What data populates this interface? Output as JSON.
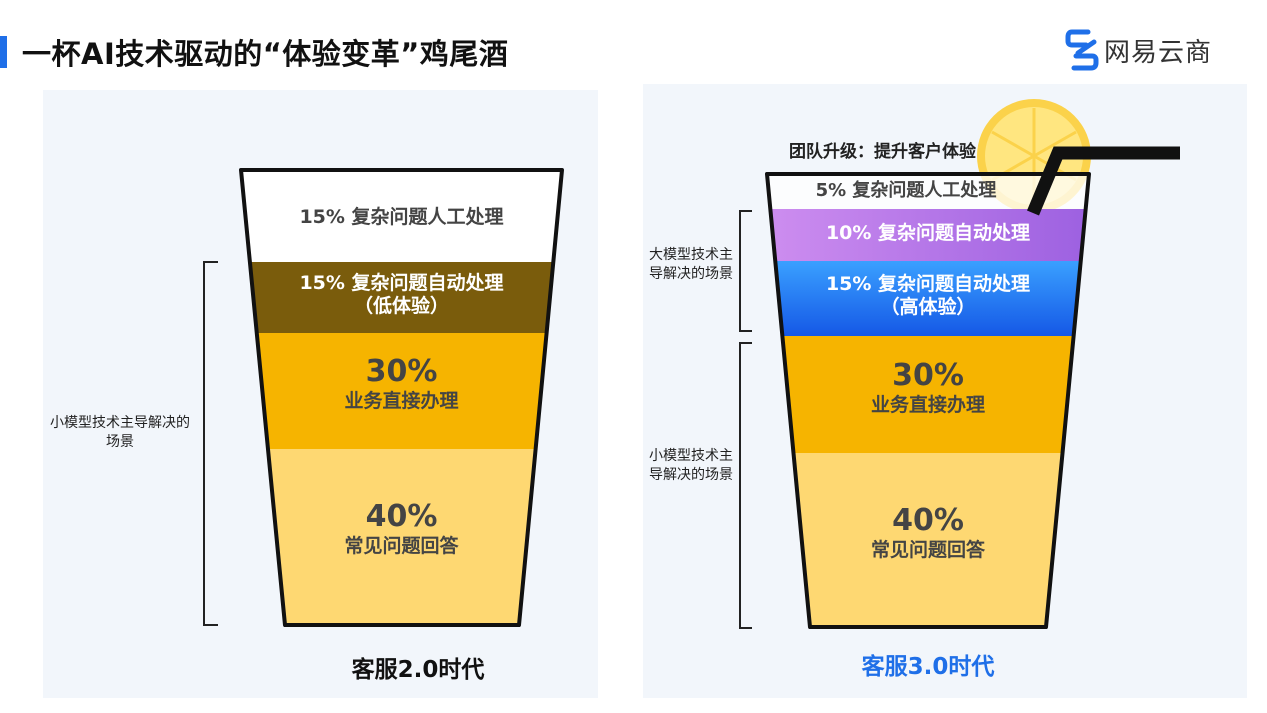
{
  "title": "一杯AI技术驱动的“体验变革”鸡尾酒",
  "brand": {
    "name": "网易云商",
    "logo_icon": "netease-yunshang-logo-icon",
    "color": "#1f6fe8"
  },
  "left": {
    "segments": [
      {
        "pct": "15%",
        "text": "复杂问题人工处理",
        "line": "15% 复杂问题人工处理",
        "fill": "#ffffff"
      },
      {
        "line1": "15% 复杂问题自动处理",
        "line2": "（低体验）",
        "fill": "#7a5c0c"
      },
      {
        "pct": "30%",
        "text": "业务直接办理",
        "fill": "#f6b400"
      },
      {
        "pct": "40%",
        "text": "常见问题回答",
        "fill": "#fed872"
      }
    ],
    "bracket_note": "小模型技术主导解决的场景",
    "caption": "客服2.0时代",
    "caption_color": "#111111"
  },
  "right": {
    "top_note": "团队升级：提升客户体验",
    "segments": [
      {
        "line": "5% 复杂问题人工处理",
        "fill": "#ffffff"
      },
      {
        "line": "10% 复杂问题自动处理",
        "fill": "#b97be6"
      },
      {
        "line1": "15% 复杂问题自动处理",
        "line2": "（高体验）",
        "fill": "#1e8cf0"
      },
      {
        "pct": "30%",
        "text": "业务直接办理",
        "fill": "#f6b400"
      },
      {
        "pct": "40%",
        "text": "常见问题回答",
        "fill": "#fed872"
      }
    ],
    "upper_bracket_note": "大模型技术主导解决的场景",
    "lower_bracket_note": "小模型技术主导解决的场景",
    "caption": "客服3.0时代",
    "caption_color": "#1f6fe8",
    "decor": {
      "lemon_icon": "lemon-slice-icon",
      "straw_icon": "straw-icon"
    }
  }
}
